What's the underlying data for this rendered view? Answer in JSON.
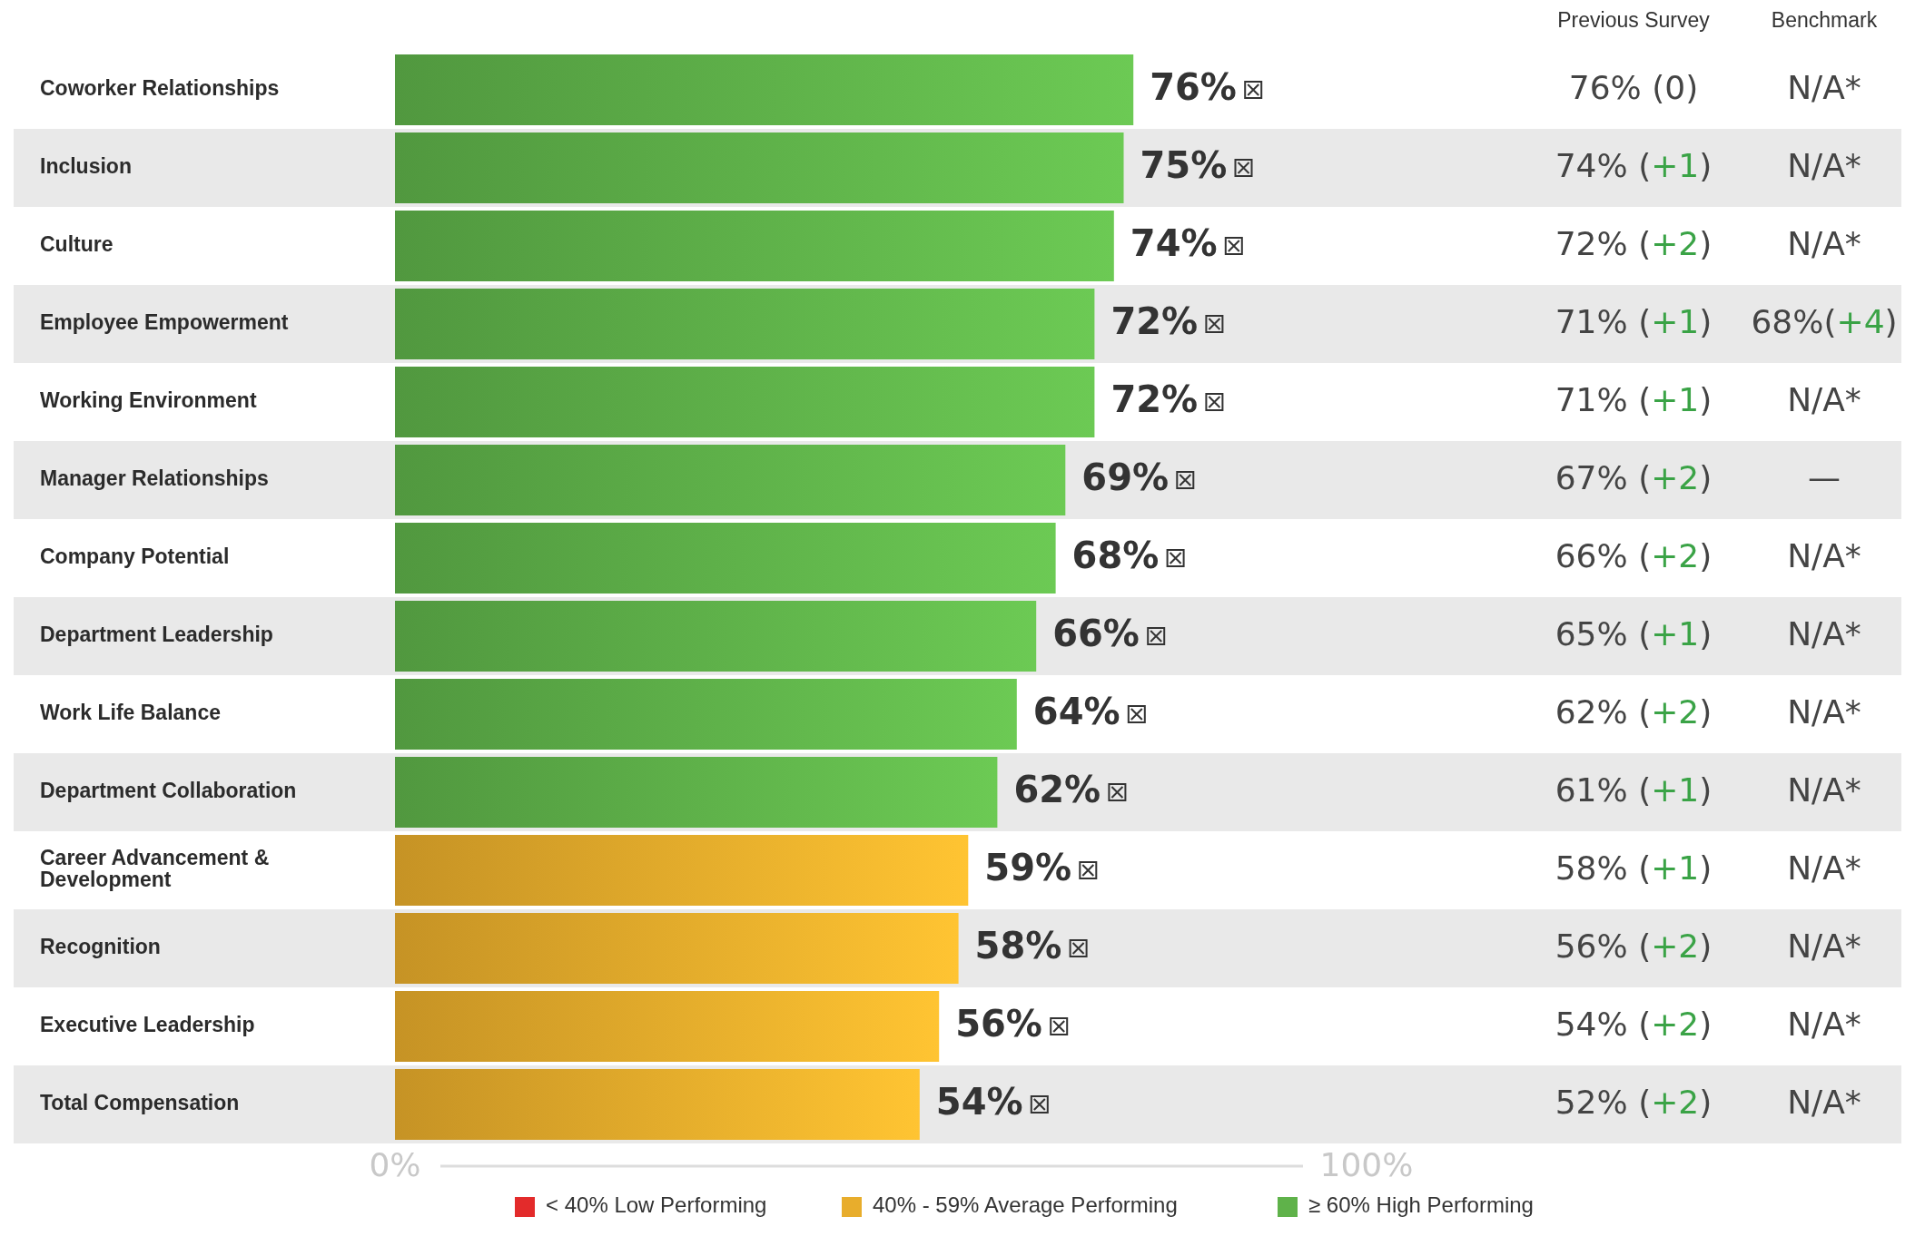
{
  "chart_data": {
    "type": "bar",
    "orientation": "horizontal",
    "categories": [
      "Coworker Relationships",
      "Inclusion",
      "Culture",
      "Employee Empowerment",
      "Working Environment",
      "Manager Relationships",
      "Company Potential",
      "Department Leadership",
      "Work Life Balance",
      "Department Collaboration",
      "Career Advancement & Development",
      "Recognition",
      "Executive Leadership",
      "Total Compensation"
    ],
    "series": [
      {
        "name": "< 40% Low Performing",
        "color": "#e32b2b",
        "values": [
          null,
          null,
          null,
          null,
          null,
          null,
          null,
          null,
          null,
          null,
          null,
          null,
          null,
          null
        ],
        "value_labels": [
          null,
          null,
          null,
          null,
          null,
          null,
          null,
          null,
          null,
          null,
          null,
          null,
          null,
          null
        ]
      },
      {
        "name": "40% - 59% Average Performing",
        "color": "#e8ad2c",
        "values": [
          null,
          null,
          null,
          null,
          null,
          null,
          null,
          null,
          null,
          null,
          59,
          58,
          56,
          54
        ],
        "value_labels": [
          null,
          null,
          null,
          null,
          null,
          null,
          null,
          null,
          null,
          null,
          "59%",
          "58%",
          "56%",
          "54%"
        ]
      },
      {
        "name": "≥ 60% High Performing",
        "color": "#5fb24a",
        "values": [
          76,
          75,
          74,
          72,
          72,
          69,
          68,
          66,
          64,
          62,
          null,
          null,
          null,
          null
        ],
        "value_labels": [
          "76%",
          "75%",
          "74%",
          "72%",
          "72%",
          "69%",
          "68%",
          "66%",
          "64%",
          "62%",
          null,
          null,
          null,
          null
        ]
      }
    ],
    "xlim": [
      0,
      100
    ],
    "xticks": [
      {
        "value": 0,
        "label": "0%"
      },
      {
        "value": 100,
        "label": "100%"
      }
    ],
    "legend": "bottom",
    "annotations": [
      "Previous Survey",
      "Benchmark",
      "76% (0)",
      "N/A*",
      "74% (+1)",
      "N/A*",
      "72% (+2)",
      "N/A*",
      "71% (+1)",
      "68%(+4)",
      "71% (+1)",
      "N/A*",
      "67% (+2)",
      "—",
      "66% (+2)",
      "N/A*",
      "65% (+1)",
      "N/A*",
      "62% (+2)",
      "N/A*",
      "61% (+1)",
      "N/A*",
      "58% (+1)",
      "N/A*",
      "56% (+2)",
      "N/A*",
      "54% (+2)",
      "N/A*",
      "52% (+2)",
      "N/A*"
    ]
  }
}
